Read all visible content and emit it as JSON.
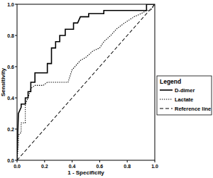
{
  "chart_data": {
    "type": "line",
    "xlabel": "1 - Specificity",
    "ylabel": "Sensitivity",
    "xlim": [
      0,
      1
    ],
    "ylim": [
      0,
      1
    ],
    "xticks": [
      {
        "value": 0,
        "label": "0.0"
      },
      {
        "value": 0.2,
        "label": "0.2"
      },
      {
        "value": 0.4,
        "label": "0.4"
      },
      {
        "value": 0.6,
        "label": "0.6"
      },
      {
        "value": 0.8,
        "label": "0.8"
      },
      {
        "value": 1,
        "label": "1.0"
      }
    ],
    "yticks": [
      {
        "value": 0,
        "label": "0.0"
      },
      {
        "value": 0.2,
        "label": "0.2"
      },
      {
        "value": 0.4,
        "label": "0.4"
      },
      {
        "value": 0.6,
        "label": "0.6"
      },
      {
        "value": 0.8,
        "label": "0.8"
      },
      {
        "value": 1,
        "label": "1.0"
      }
    ],
    "legend": "right",
    "legend_title": "Legend",
    "series": [
      {
        "name": "D-dimer",
        "color": "#000000",
        "line_style": "solid",
        "x": [
          0,
          0,
          0.01,
          0.03,
          0.03,
          0.06,
          0.06,
          0.08,
          0.08,
          0.1,
          0.1,
          0.13,
          0.13,
          0.22,
          0.22,
          0.25,
          0.25,
          0.28,
          0.28,
          0.31,
          0.31,
          0.35,
          0.35,
          0.41,
          0.41,
          0.44,
          0.46,
          0.52,
          0.52,
          0.63,
          0.63,
          0.94,
          0.94,
          1.0
        ],
        "values": [
          0,
          0.03,
          0.3,
          0.34,
          0.36,
          0.36,
          0.4,
          0.4,
          0.44,
          0.44,
          0.5,
          0.5,
          0.56,
          0.56,
          0.62,
          0.62,
          0.72,
          0.72,
          0.76,
          0.76,
          0.8,
          0.8,
          0.84,
          0.84,
          0.88,
          0.88,
          0.92,
          0.92,
          0.94,
          0.94,
          0.96,
          0.96,
          1.0,
          1.0
        ]
      },
      {
        "name": "Lactate",
        "color": "#000000",
        "line_style": "dotted",
        "x": [
          0,
          0.01,
          0.01,
          0.03,
          0.03,
          0.06,
          0.06,
          0.08,
          0.1,
          0.13,
          0.19,
          0.22,
          0.28,
          0.37,
          0.4,
          0.46,
          0.5,
          0.55,
          0.6,
          0.63,
          0.68,
          0.72,
          0.78,
          0.85,
          0.9,
          0.94,
          0.97,
          1.0
        ],
        "values": [
          0,
          0.1,
          0.16,
          0.18,
          0.24,
          0.24,
          0.36,
          0.4,
          0.46,
          0.48,
          0.48,
          0.5,
          0.5,
          0.5,
          0.58,
          0.64,
          0.66,
          0.7,
          0.72,
          0.76,
          0.8,
          0.84,
          0.88,
          0.92,
          0.94,
          0.96,
          0.96,
          1.0
        ]
      },
      {
        "name": "Reference line",
        "color": "#000000",
        "line_style": "dashed",
        "x": [
          0,
          1
        ],
        "values": [
          0,
          1
        ]
      }
    ]
  }
}
